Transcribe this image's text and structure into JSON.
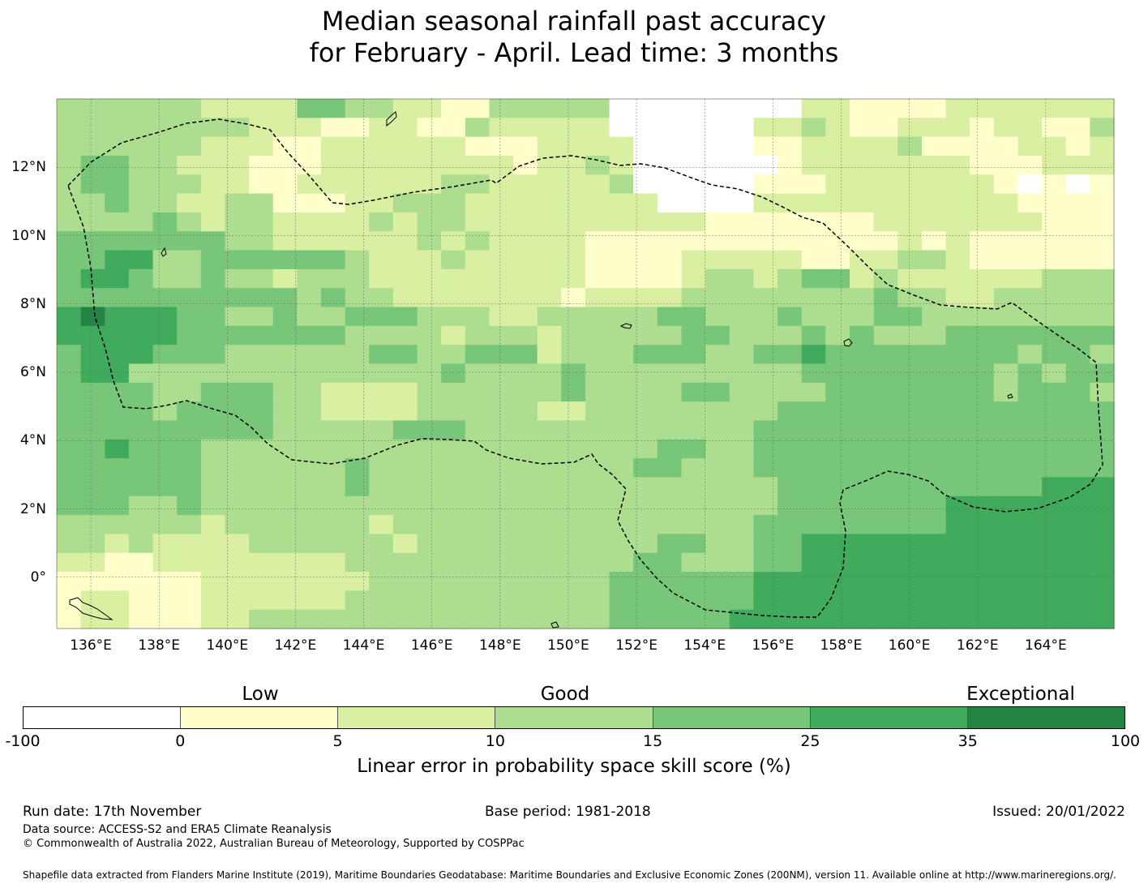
{
  "title": {
    "line1": "Median seasonal rainfall past accuracy",
    "line2": "for February - April. Lead time: 3 months"
  },
  "map": {
    "lon_range": [
      135.0,
      166.0
    ],
    "lat_range": [
      -1.5,
      14.0
    ],
    "lon_ticks": [
      "136°E",
      "138°E",
      "140°E",
      "142°E",
      "144°E",
      "146°E",
      "148°E",
      "150°E",
      "152°E",
      "154°E",
      "156°E",
      "158°E",
      "160°E",
      "162°E",
      "164°E"
    ],
    "lat_ticks": [
      "12°N",
      "10°N",
      "8°N",
      "6°N",
      "4°N",
      "2°N",
      "0°"
    ],
    "boundary_style": "dashed",
    "grid": "dotted"
  },
  "legend": {
    "categories": [
      "Low",
      "Good",
      "Exceptional"
    ],
    "bins": [
      {
        "range": "-100 to 0",
        "color": "#ffffff"
      },
      {
        "range": "0 to 5",
        "color": "#ffffcc"
      },
      {
        "range": "5 to 10",
        "color": "#d9f0a3"
      },
      {
        "range": "10 to 15",
        "color": "#addd8e"
      },
      {
        "range": "15 to 25",
        "color": "#78c679"
      },
      {
        "range": "25 to 35",
        "color": "#41ab5d"
      },
      {
        "range": "35 to 100",
        "color": "#238443"
      }
    ],
    "ticks": [
      "-100",
      "0",
      "5",
      "10",
      "15",
      "25",
      "35",
      "100"
    ],
    "label": "Linear error in probability space skill score (%)"
  },
  "footer": {
    "run_date": "Run date: 17th November",
    "base_period": "Base period: 1981-2018",
    "issued": "Issued: 20/01/2022",
    "data_source": "Data source: ACCESS-S2 and ERA5 Climate Reanalysis",
    "copyright": "© Commonwealth of Australia 2022, Australian Bureau of Meteorology, Supported by COSPPac",
    "shapefile": "Shapefile data extracted from Flanders Marine Institute (2019), Maritime Boundaries Geodatabase: Maritime Boundaries and Exclusive Economic Zones (200NM), version 11. Available online at http://www.marineregions.org/."
  }
}
